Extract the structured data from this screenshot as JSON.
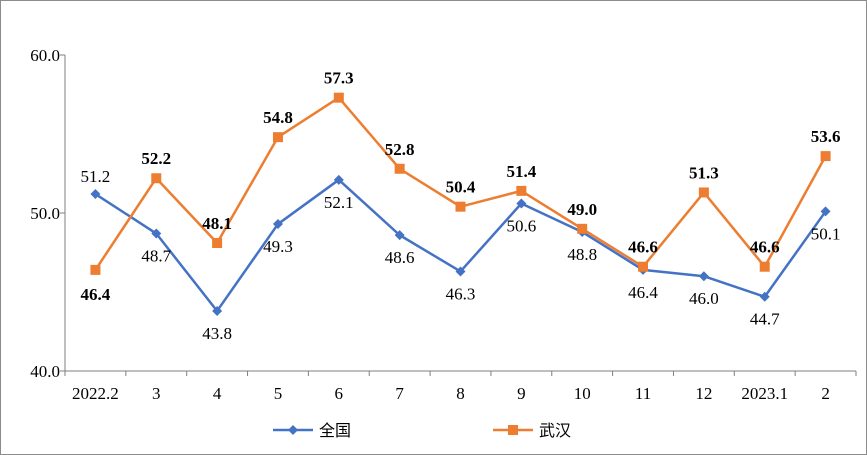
{
  "chart_data": {
    "type": "line",
    "title": "",
    "xlabel": "",
    "ylabel": "",
    "ylim": [
      40.0,
      60.0
    ],
    "yticks": [
      "40.0",
      "50.0",
      "60.0"
    ],
    "categories": [
      "2022.2",
      "3",
      "4",
      "5",
      "6",
      "7",
      "8",
      "9",
      "10",
      "11",
      "12",
      "2023.1",
      "2"
    ],
    "series": [
      {
        "name": "全国",
        "color": "#4472C4",
        "marker": "diamond",
        "values": [
          51.2,
          48.7,
          43.8,
          49.3,
          52.1,
          48.6,
          46.3,
          50.6,
          48.8,
          46.4,
          46.0,
          44.7,
          50.1
        ],
        "labels": [
          "51.2",
          "48.7",
          "43.8",
          "49.3",
          "52.1",
          "48.6",
          "46.3",
          "50.6",
          "48.8",
          "46.4",
          "46.0",
          "44.7",
          "50.1"
        ]
      },
      {
        "name": "武汉",
        "color": "#ED7D31",
        "marker": "square",
        "values": [
          46.4,
          52.2,
          48.1,
          54.8,
          57.3,
          52.8,
          50.4,
          51.4,
          49.0,
          46.6,
          51.3,
          46.6,
          53.6
        ],
        "labels": [
          "46.4",
          "52.2",
          "48.1",
          "54.8",
          "57.3",
          "52.8",
          "50.4",
          "51.4",
          "49.0",
          "46.6",
          "51.3",
          "46.6",
          "53.6"
        ]
      }
    ],
    "grid": false,
    "legend_position": "bottom"
  }
}
